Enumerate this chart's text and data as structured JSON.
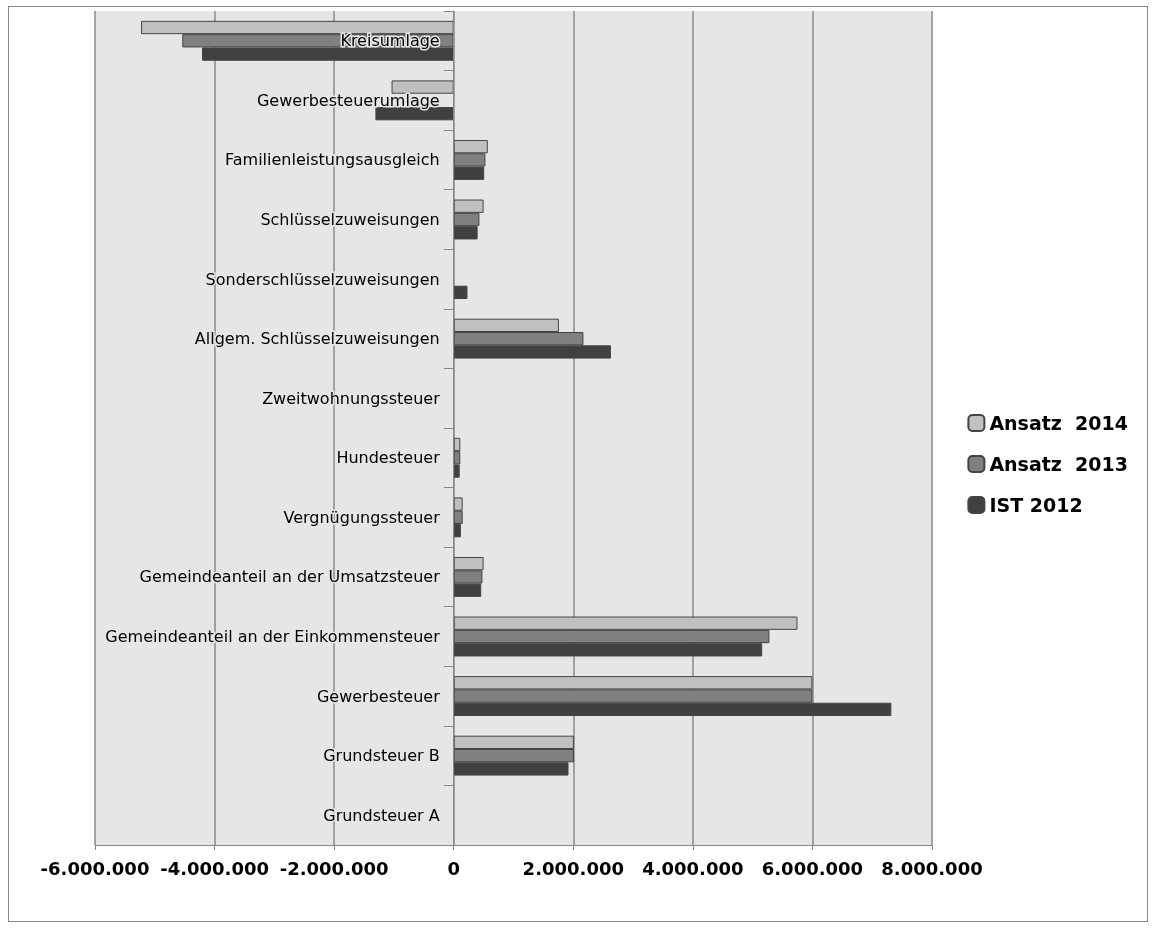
{
  "chart_data": {
    "type": "bar",
    "orientation": "horizontal",
    "categories": [
      "Kreisumlage",
      "Gewerbesteuerumlage",
      "Familienleistungsausgleich",
      "Schlüsselzuweisungen",
      "Sonderschlüsselzuweisungen",
      "Allgem. Schlüsselzuweisungen",
      "Zweitwohnungssteuer",
      "Hundesteuer",
      "Vergnügungssteuer",
      "Gemeindeanteil an der Umsatzsteuer",
      "Gemeindeanteil an der Einkommensteuer",
      "Gewerbesteuer",
      "Grundsteuer B",
      "Grundsteuer A"
    ],
    "series": [
      {
        "name": "Ansatz  2014",
        "color": "#c0c0c0",
        "values": [
          -5230000,
          -1040000,
          570000,
          500000,
          0,
          1760000,
          0,
          110000,
          150000,
          500000,
          5750000,
          6000000,
          2010000,
          0
        ]
      },
      {
        "name": "Ansatz  2013",
        "color": "#808080",
        "values": [
          -4540000,
          null,
          530000,
          430000,
          0,
          2170000,
          0,
          110000,
          150000,
          480000,
          5280000,
          6000000,
          2010000,
          0
        ]
      },
      {
        "name": "IST 2012",
        "color": "#404040",
        "values": [
          -4210000,
          -1310000,
          510000,
          400000,
          230000,
          2630000,
          0,
          100000,
          120000,
          460000,
          5160000,
          7320000,
          1920000,
          0
        ]
      }
    ],
    "xlim": [
      -6000000,
      8000000
    ],
    "xticks": [
      {
        "value": -6000000,
        "label": "-6.000.000"
      },
      {
        "value": -4000000,
        "label": "-4.000.000"
      },
      {
        "value": -2000000,
        "label": "-2.000.000"
      },
      0,
      {
        "value": 2000000,
        "label": "2.000.000"
      },
      {
        "value": 4000000,
        "label": "4.000.000"
      },
      {
        "value": 6000000,
        "label": "6.000.000"
      },
      {
        "value": 8000000,
        "label": "8.000.000"
      }
    ],
    "grid": "x",
    "legend": "right"
  }
}
